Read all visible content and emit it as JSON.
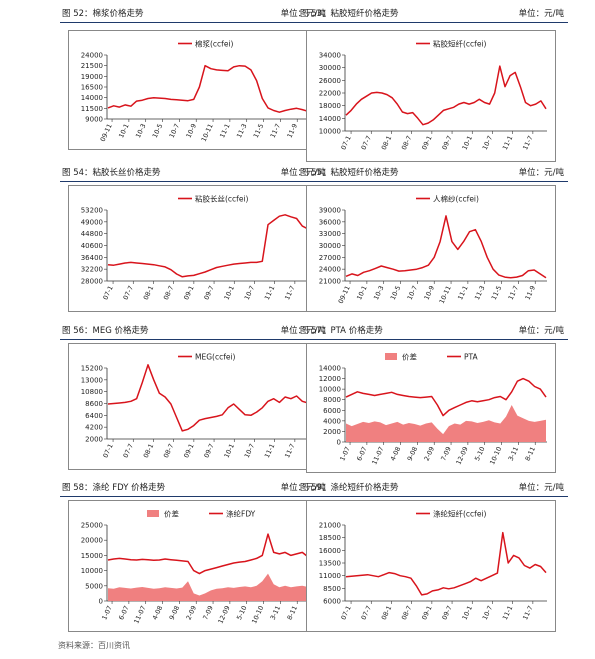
{
  "source_note": "资料来源：百川资讯",
  "panels": [
    {
      "title": "图 52：棉浆价格走势",
      "unit": "单位：元/吨"
    },
    {
      "title": "图 53：粘胶短纤价格走势",
      "unit": "单位：元/吨"
    },
    {
      "title": "图 54：粘胶长丝价格走势",
      "unit": "单位：元/吨"
    },
    {
      "title": "图 55：粘胶短纤价格走势",
      "unit": "单位：元/吨"
    },
    {
      "title": "图 56：MEG 价格走势",
      "unit": "单位：元/吨"
    },
    {
      "title": "图 57：PTA 价格走势",
      "unit": "单位：元/吨"
    },
    {
      "title": "图 58：涤纶 FDY 价格走势",
      "unit": "单位：元/吨"
    },
    {
      "title": "图 59：涤纶短纤价格走势",
      "unit": "单位：元/吨"
    }
  ],
  "colors": {
    "line": "#d8141c",
    "area": "#f08080",
    "rule": "#1f3a6b"
  },
  "chart_data": [
    {
      "type": "line",
      "title": "",
      "series": [
        {
          "name": "棉浆(ccfei)",
          "values": [
            11600,
            12100,
            11800,
            12300,
            12000,
            13200,
            13400,
            13800,
            14000,
            13900,
            13800,
            13600,
            13500,
            13400,
            13300,
            13600,
            16500,
            21500,
            20800,
            20500,
            20400,
            20300,
            21200,
            21500,
            21400,
            20500,
            18000,
            13800,
            11600,
            11000,
            10600,
            11000,
            11300,
            11500,
            11200,
            10800
          ]
        }
      ],
      "ylim": [
        9000,
        24000
      ],
      "yticks": [
        "24000",
        "21500",
        "19000",
        "16500",
        "14000",
        "11500",
        "9000"
      ],
      "xticks": [
        "09-11",
        "10-1",
        "10-3",
        "10-5",
        "10-7",
        "10-9",
        "10-11",
        "11-1",
        "11-3",
        "11-5",
        "11-7",
        "11-9"
      ],
      "legend": "top-center"
    },
    {
      "type": "line",
      "title": "",
      "series": [
        {
          "name": "粘胶短纤(ccfei)",
          "values": [
            15000,
            16500,
            18500,
            20000,
            21000,
            22000,
            22200,
            22000,
            21500,
            20500,
            18500,
            16000,
            15500,
            15800,
            14000,
            12000,
            12500,
            13500,
            15000,
            16500,
            17000,
            17500,
            18500,
            19000,
            18500,
            19000,
            20000,
            19000,
            18500,
            22000,
            30500,
            24000,
            27500,
            28500,
            24000,
            19000,
            18000,
            18500,
            19500,
            17000
          ]
        }
      ],
      "ylim": [
        10000,
        34000
      ],
      "yticks": [
        "34000",
        "30000",
        "26000",
        "22000",
        "18000",
        "14000",
        "10000"
      ],
      "xticks": [
        "07-1",
        "07-7",
        "08-1",
        "08-7",
        "09-1",
        "09-7",
        "10-1",
        "10-7",
        "11-1",
        "11-7"
      ],
      "legend": "top-center"
    },
    {
      "type": "line",
      "title": "",
      "series": [
        {
          "name": "粘胶长丝(ccfei)",
          "values": [
            33800,
            33600,
            34000,
            34400,
            34600,
            34400,
            34200,
            34000,
            33800,
            33400,
            33000,
            32000,
            30500,
            29500,
            29800,
            30000,
            30600,
            31200,
            32000,
            32800,
            33200,
            33600,
            34000,
            34200,
            34400,
            34600,
            34600,
            35000,
            48000,
            49500,
            51000,
            51500,
            50800,
            50200,
            47500,
            46500
          ]
        }
      ],
      "ylim": [
        28000,
        53200
      ],
      "yticks": [
        "53200",
        "49000",
        "44800",
        "40600",
        "36400",
        "32200",
        "28000"
      ],
      "xticks": [
        "07-1",
        "07-7",
        "08-1",
        "08-7",
        "09-1",
        "09-7",
        "10-1",
        "10-7",
        "11-1",
        "11-7"
      ],
      "legend": "top-center"
    },
    {
      "type": "line",
      "title": "",
      "series": [
        {
          "name": "人棉纱(ccfei)",
          "values": [
            22200,
            22800,
            22400,
            23200,
            23600,
            24200,
            24800,
            24400,
            24000,
            23500,
            23600,
            23800,
            24000,
            24400,
            25000,
            27000,
            31000,
            37500,
            31000,
            29000,
            31000,
            33500,
            34000,
            31000,
            27000,
            24000,
            22500,
            22000,
            21800,
            22000,
            22400,
            23600,
            23800,
            22800,
            21800
          ]
        }
      ],
      "ylim": [
        21000,
        39000
      ],
      "yticks": [
        "39000",
        "36000",
        "33000",
        "30000",
        "27000",
        "24000",
        "21000"
      ],
      "xticks": [
        "09-11",
        "10-1",
        "10-3",
        "10-5",
        "10-7",
        "10-9",
        "10-11",
        "11-1",
        "11-3",
        "11-5",
        "11-7",
        "11-9"
      ],
      "legend": "top-center"
    },
    {
      "type": "line",
      "title": "",
      "series": [
        {
          "name": "MEG(ccfei)",
          "values": [
            8500,
            8600,
            8700,
            8800,
            9000,
            9500,
            12500,
            15800,
            13000,
            10500,
            9800,
            8500,
            6000,
            3500,
            3800,
            4500,
            5500,
            5800,
            6000,
            6200,
            6500,
            7800,
            8500,
            7500,
            6500,
            6400,
            7000,
            7800,
            9000,
            9500,
            8800,
            9800,
            9500,
            10000,
            9000,
            8700
          ]
        }
      ],
      "ylim": [
        2000,
        15200
      ],
      "yticks": [
        "15200",
        "13000",
        "10800",
        "8600",
        "6400",
        "4200",
        "2000"
      ],
      "xticks": [
        "07-1",
        "07-7",
        "08-1",
        "08-7",
        "09-1",
        "09-7",
        "10-1",
        "10-7",
        "11-1",
        "11-7"
      ],
      "legend": "top-center"
    },
    {
      "type": "area",
      "title": "",
      "series": [
        {
          "name": "价差",
          "type": "area",
          "values": [
            3500,
            3000,
            3400,
            3800,
            3600,
            3900,
            3700,
            3200,
            3500,
            3800,
            3300,
            3600,
            3400,
            3100,
            3500,
            3700,
            2500,
            1500,
            3000,
            3500,
            3300,
            4000,
            3900,
            3600,
            3800,
            4100,
            3700,
            3500,
            4800,
            7000,
            5000,
            4500,
            4000,
            3800,
            4000,
            4200
          ]
        },
        {
          "name": "PTA",
          "type": "line",
          "values": [
            8500,
            9000,
            9500,
            9200,
            9000,
            8800,
            9000,
            9200,
            9400,
            9000,
            8800,
            8600,
            8500,
            8400,
            8500,
            8600,
            7000,
            5000,
            6000,
            6500,
            7000,
            7500,
            7800,
            7600,
            7800,
            8000,
            8400,
            8600,
            8000,
            9500,
            11500,
            12000,
            11500,
            10500,
            10000,
            8500
          ]
        }
      ],
      "ylim": [
        0,
        14000
      ],
      "yticks": [
        "14000",
        "12000",
        "10000",
        "8000",
        "6000",
        "4000",
        "2000",
        "0"
      ],
      "xticks": [
        "1-07",
        "6-07",
        "11-07",
        "4-08",
        "9-08",
        "2-09",
        "7-09",
        "12-09",
        "5-10",
        "10-10",
        "3-11",
        "8-11"
      ],
      "legend": "top-center"
    },
    {
      "type": "area",
      "title": "",
      "series": [
        {
          "name": "价差",
          "type": "area",
          "values": [
            4200,
            4000,
            4500,
            4300,
            4100,
            4400,
            4600,
            4300,
            4000,
            4200,
            4500,
            4300,
            4100,
            4400,
            6500,
            2500,
            1800,
            2500,
            3500,
            4000,
            4200,
            4500,
            4300,
            4600,
            4800,
            4500,
            5000,
            6500,
            9000,
            5500,
            4500,
            5000,
            4500,
            4800,
            5000,
            4600
          ]
        },
        {
          "name": "涤纶FDY",
          "type": "line",
          "values": [
            13500,
            13800,
            14000,
            13800,
            13600,
            13500,
            13700,
            13600,
            13400,
            13500,
            13800,
            13600,
            13400,
            13200,
            13000,
            10000,
            9000,
            10000,
            10500,
            11000,
            11500,
            12000,
            12500,
            12800,
            13000,
            13500,
            14000,
            15000,
            22000,
            16000,
            15500,
            16000,
            15000,
            15500,
            16000,
            14500
          ]
        }
      ],
      "ylim": [
        0,
        25000
      ],
      "yticks": [
        "25000",
        "20000",
        "15000",
        "10000",
        "5000",
        "0"
      ],
      "xticks": [
        "1-07",
        "6-07",
        "11-07",
        "4-08",
        "9-08",
        "2-09",
        "7-09",
        "12-09",
        "5-10",
        "10-10",
        "3-11",
        "8-11"
      ],
      "legend": "top-center"
    },
    {
      "type": "line",
      "title": "",
      "series": [
        {
          "name": "涤纶短纤(ccfei)",
          "values": [
            10800,
            10900,
            11000,
            11100,
            11200,
            11000,
            10800,
            11200,
            11600,
            11400,
            11000,
            10800,
            10500,
            9000,
            7200,
            7400,
            8000,
            8200,
            8600,
            8400,
            8600,
            9000,
            9400,
            9800,
            10500,
            10000,
            10500,
            11000,
            11500,
            19500,
            13500,
            15000,
            14500,
            13000,
            12500,
            13200,
            12800,
            11600
          ]
        }
      ],
      "ylim": [
        6000,
        21000
      ],
      "yticks": [
        "21000",
        "18500",
        "16000",
        "13500",
        "11000",
        "8500",
        "6000"
      ],
      "xticks": [
        "07-1",
        "07-7",
        "08-1",
        "08-7",
        "09-1",
        "09-7",
        "10-1",
        "10-7",
        "11-1",
        "11-7"
      ],
      "legend": "top-center"
    }
  ]
}
